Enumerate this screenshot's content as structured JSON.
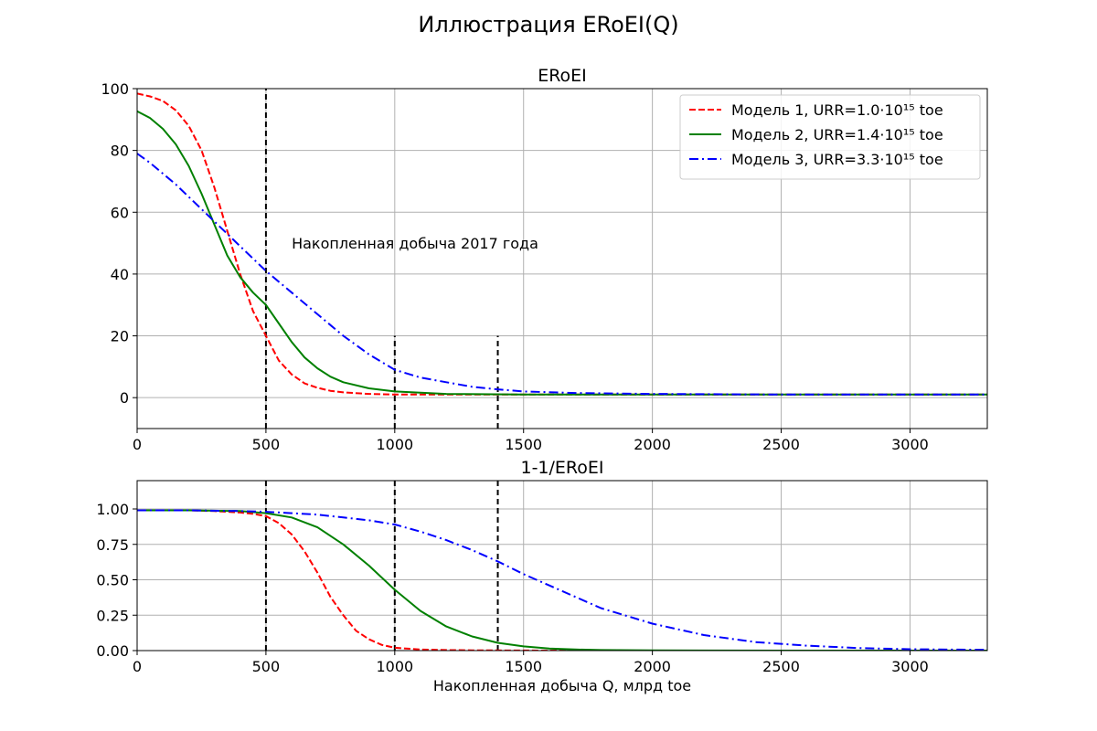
{
  "figure": {
    "suptitle": "Иллюстрация ERoEI(Q)"
  },
  "chart_data": [
    {
      "type": "line",
      "title": "ERoEI",
      "xlabel": "",
      "ylabel": "",
      "xlim": [
        0,
        3300
      ],
      "ylim": [
        -10,
        100
      ],
      "xticks": [
        0,
        500,
        1000,
        1500,
        2000,
        2500,
        3000
      ],
      "yticks": [
        0,
        20,
        40,
        60,
        80,
        100
      ],
      "ytick_labels": [
        "0",
        "20",
        "40",
        "60",
        "80",
        "100"
      ],
      "grid": true,
      "legend": "top-right",
      "series": [
        {
          "name": "Модель 1, URR=1.0·10¹⁵ toe",
          "color": "#ff0000",
          "dash": "dashed",
          "x": [
            0,
            50,
            100,
            150,
            200,
            250,
            300,
            350,
            400,
            450,
            500,
            550,
            600,
            650,
            700,
            750,
            800,
            900,
            1000,
            1200,
            1500,
            2000,
            2500,
            3000,
            3300
          ],
          "y": [
            98.4,
            97.5,
            96.0,
            93.0,
            88.0,
            80.0,
            68.0,
            54.0,
            40.0,
            28.0,
            20.0,
            12.0,
            7.5,
            4.6,
            3.2,
            2.2,
            1.7,
            1.2,
            1.0,
            1.0,
            1.0,
            1.0,
            1.0,
            1.0,
            1.0
          ]
        },
        {
          "name": "Модель 2, URR=1.4·10¹⁵ toe",
          "color": "#008000",
          "dash": "solid",
          "x": [
            0,
            50,
            100,
            150,
            200,
            250,
            300,
            350,
            400,
            450,
            500,
            550,
            600,
            650,
            700,
            750,
            800,
            900,
            1000,
            1200,
            1500,
            2000,
            2500,
            3000,
            3300
          ],
          "y": [
            92.7,
            90.5,
            87.0,
            82.0,
            75.0,
            66.0,
            56.0,
            46.0,
            39.0,
            34.0,
            30.0,
            24.0,
            18.0,
            13.0,
            9.5,
            6.8,
            5.0,
            3.0,
            2.0,
            1.2,
            1.0,
            1.0,
            1.0,
            1.0,
            1.0
          ]
        },
        {
          "name": "Модель 3, URR=3.3·10¹⁵ toe",
          "color": "#0000ff",
          "dash": "dashdot",
          "x": [
            0,
            50,
            100,
            150,
            200,
            250,
            300,
            350,
            400,
            450,
            500,
            600,
            700,
            800,
            900,
            1000,
            1100,
            1200,
            1300,
            1400,
            1500,
            1700,
            2000,
            2500,
            3000,
            3300
          ],
          "y": [
            79.0,
            76.0,
            72.5,
            69.0,
            65.0,
            61.0,
            57.0,
            53.0,
            49.0,
            45.0,
            41.0,
            34.0,
            27.0,
            20.0,
            14.0,
            9.0,
            6.5,
            5.0,
            3.5,
            2.7,
            2.0,
            1.5,
            1.2,
            1.0,
            1.0,
            1.0
          ]
        }
      ],
      "vlines": [
        {
          "x": 500,
          "y0": -10,
          "y1": 100
        },
        {
          "x": 1000,
          "y0": -10,
          "y1": 20
        },
        {
          "x": 1400,
          "y0": -10,
          "y1": 20
        }
      ],
      "annotations": [
        {
          "text": "Накопленная добыча 2017 года",
          "x": 600,
          "y": 50
        }
      ]
    },
    {
      "type": "line",
      "title": "1-1/ERoEI",
      "xlabel": "Накопленная добыча Q, млрд toe",
      "ylabel": "",
      "xlim": [
        0,
        3300
      ],
      "ylim": [
        0,
        1.2
      ],
      "xticks": [
        0,
        500,
        1000,
        1500,
        2000,
        2500,
        3000
      ],
      "yticks": [
        0,
        0.25,
        0.5,
        0.75,
        1.0
      ],
      "ytick_labels": [
        "0.00",
        "0.25",
        "0.50",
        "0.75",
        "1.00"
      ],
      "grid": true,
      "series": [
        {
          "name": "Модель 1, URR=1.0·10¹⁵ toe",
          "color": "#ff0000",
          "dash": "dashed",
          "x": [
            0,
            100,
            200,
            300,
            400,
            450,
            500,
            550,
            600,
            650,
            700,
            750,
            800,
            850,
            900,
            950,
            1000,
            1100,
            1200,
            1300,
            1400,
            1600,
            2000,
            2500,
            3300
          ],
          "y": [
            0.99,
            0.99,
            0.99,
            0.985,
            0.975,
            0.965,
            0.95,
            0.9,
            0.82,
            0.7,
            0.55,
            0.38,
            0.25,
            0.14,
            0.08,
            0.04,
            0.02,
            0.008,
            0.004,
            0.002,
            0.001,
            0.0,
            0.0,
            0.0,
            0.0
          ]
        },
        {
          "name": "Модель 2, URR=1.4·10¹⁵ toe",
          "color": "#008000",
          "dash": "solid",
          "x": [
            0,
            200,
            400,
            500,
            600,
            700,
            800,
            900,
            1000,
            1100,
            1200,
            1300,
            1400,
            1500,
            1600,
            1700,
            1800,
            2000,
            2500,
            3300
          ],
          "y": [
            0.99,
            0.99,
            0.985,
            0.97,
            0.94,
            0.87,
            0.75,
            0.6,
            0.43,
            0.28,
            0.17,
            0.1,
            0.055,
            0.03,
            0.015,
            0.008,
            0.004,
            0.001,
            0.0,
            0.0
          ]
        },
        {
          "name": "Модель 3, URR=3.3·10¹⁵ toe",
          "color": "#0000ff",
          "dash": "dashdot",
          "x": [
            0,
            200,
            400,
            500,
            600,
            700,
            800,
            900,
            1000,
            1100,
            1200,
            1300,
            1400,
            1500,
            1600,
            1800,
            2000,
            2200,
            2400,
            2600,
            2800,
            3000,
            3300
          ],
          "y": [
            0.99,
            0.99,
            0.985,
            0.98,
            0.97,
            0.96,
            0.94,
            0.92,
            0.89,
            0.84,
            0.78,
            0.71,
            0.63,
            0.54,
            0.46,
            0.3,
            0.19,
            0.11,
            0.06,
            0.035,
            0.018,
            0.01,
            0.005
          ]
        }
      ],
      "vlines": [
        {
          "x": 500,
          "y0": 0,
          "y1": 1.2
        },
        {
          "x": 1000,
          "y0": 0,
          "y1": 1.2
        },
        {
          "x": 1400,
          "y0": 0,
          "y1": 1.2
        }
      ]
    }
  ]
}
